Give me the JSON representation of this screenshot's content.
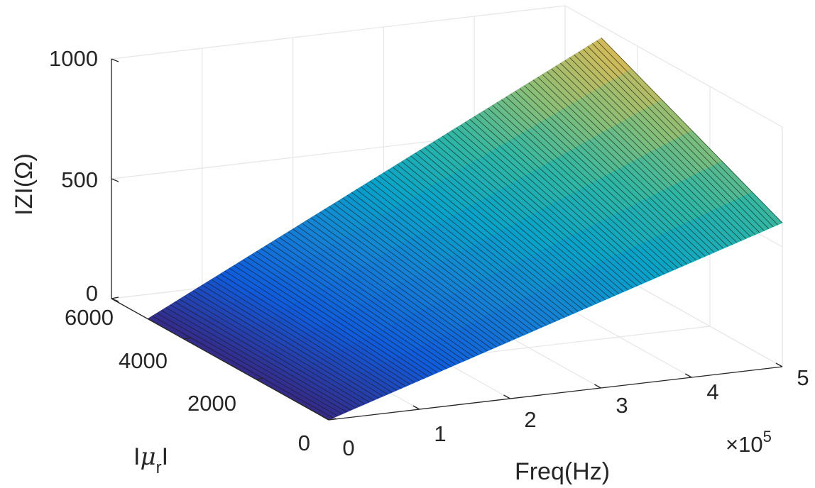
{
  "chart_data": {
    "type": "surface",
    "xlabel": "Freq(Hz)",
    "ylabel": "|μr|",
    "ylabel_parts": {
      "pre": "I",
      "mu": "μ",
      "sub": "r",
      "post": "I"
    },
    "zlabel": "IZI(Ω)",
    "x_exponent_label": {
      "times": "×",
      "base": "10",
      "exp": "5"
    },
    "x_ticks": [
      0,
      1,
      2,
      3,
      4,
      5
    ],
    "x_tick_labels": [
      "0",
      "1",
      "2",
      "3",
      "4",
      "5"
    ],
    "y_ticks": [
      0,
      2000,
      4000,
      6000
    ],
    "y_tick_labels": [
      "0",
      "2000",
      "4000",
      "6000"
    ],
    "z_ticks": [
      0,
      500,
      1000
    ],
    "z_tick_labels": [
      "0",
      "500",
      "1000"
    ],
    "xlim": [
      0,
      500000
    ],
    "ylim": [
      0,
      6000
    ],
    "zlim": [
      0,
      1000
    ],
    "surface_x_range": [
      0,
      500000
    ],
    "surface_y_range": [
      0,
      5000
    ],
    "surface_corners": {
      "z_at_x0_y0": 0,
      "z_at_x0_ymax": 0,
      "z_at_xmax_y0": 600,
      "z_at_xmax_ymax": 950
    },
    "colormap": [
      "#352a87",
      "#0f5cdd",
      "#1481d6",
      "#06a4ca",
      "#2eb7a4",
      "#87bf77",
      "#d1bb59",
      "#fec832",
      "#f9fb0e"
    ],
    "grid": true
  }
}
